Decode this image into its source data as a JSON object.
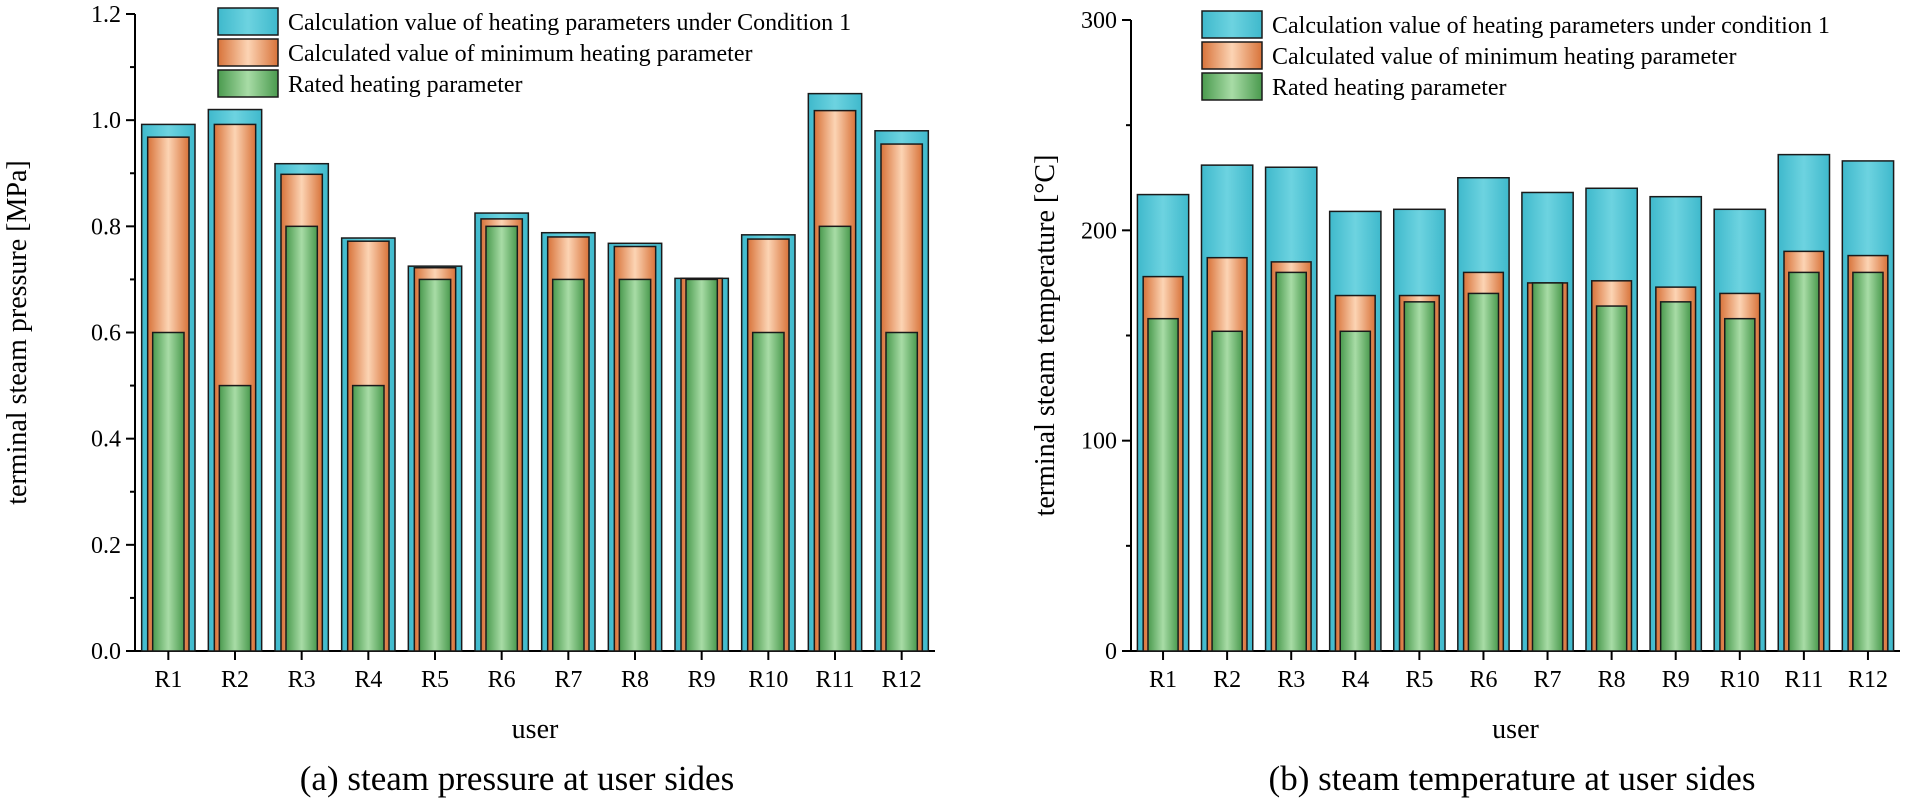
{
  "chart_data": [
    {
      "type": "bar",
      "caption": "(a) steam pressure at user sides",
      "xlabel": "user",
      "ylabel": "terminal steam pressure [MPa]",
      "ylim": [
        0,
        1.2
      ],
      "yticks": [
        "0.0",
        "0.2",
        "0.4",
        "0.6",
        "0.8",
        "1.0",
        "1.2"
      ],
      "categories": [
        "R1",
        "R2",
        "R3",
        "R4",
        "R5",
        "R6",
        "R7",
        "R8",
        "R9",
        "R10",
        "R11",
        "R12"
      ],
      "legend_position": "top-right",
      "series": [
        {
          "name": "Calculation value of heating parameters under Condition 1",
          "color": "#5bc8d8",
          "values": [
            0.992,
            1.02,
            0.918,
            0.778,
            0.725,
            0.825,
            0.788,
            0.768,
            0.702,
            0.784,
            1.05,
            0.98
          ]
        },
        {
          "name": "Calculated value of minimum heating parameter",
          "color": "#f0a070",
          "values": [
            0.968,
            0.992,
            0.898,
            0.772,
            0.722,
            0.814,
            0.78,
            0.762,
            0.702,
            0.776,
            1.018,
            0.955
          ]
        },
        {
          "name": "Rated heating parameter",
          "color": "#7cc07c",
          "values": [
            0.6,
            0.5,
            0.8,
            0.5,
            0.7,
            0.8,
            0.7,
            0.7,
            0.7,
            0.6,
            0.8,
            0.6
          ]
        }
      ]
    },
    {
      "type": "bar",
      "caption": "(b) steam temperature at user sides",
      "xlabel": "user",
      "ylabel": "terminal steam temperature [°C]",
      "ylim": [
        0,
        300
      ],
      "yticks": [
        "0",
        "100",
        "200",
        "300"
      ],
      "categories": [
        "R1",
        "R2",
        "R3",
        "R4",
        "R5",
        "R6",
        "R7",
        "R8",
        "R9",
        "R10",
        "R11",
        "R12"
      ],
      "legend_position": "top-right",
      "series": [
        {
          "name": "Calculation value of heating parameters under condition 1",
          "color": "#5bc8d8",
          "values": [
            217,
            231,
            230,
            209,
            210,
            225,
            218,
            220,
            216,
            210,
            236,
            233
          ]
        },
        {
          "name": "Calculated value of minimum heating parameter",
          "color": "#f0a070",
          "values": [
            178,
            187,
            185,
            169,
            169,
            180,
            175,
            176,
            173,
            170,
            190,
            188
          ]
        },
        {
          "name": "Rated heating parameter",
          "color": "#7cc07c",
          "values": [
            158,
            152,
            180,
            152,
            166,
            170,
            175,
            164,
            166,
            158,
            180,
            180
          ]
        }
      ]
    }
  ]
}
